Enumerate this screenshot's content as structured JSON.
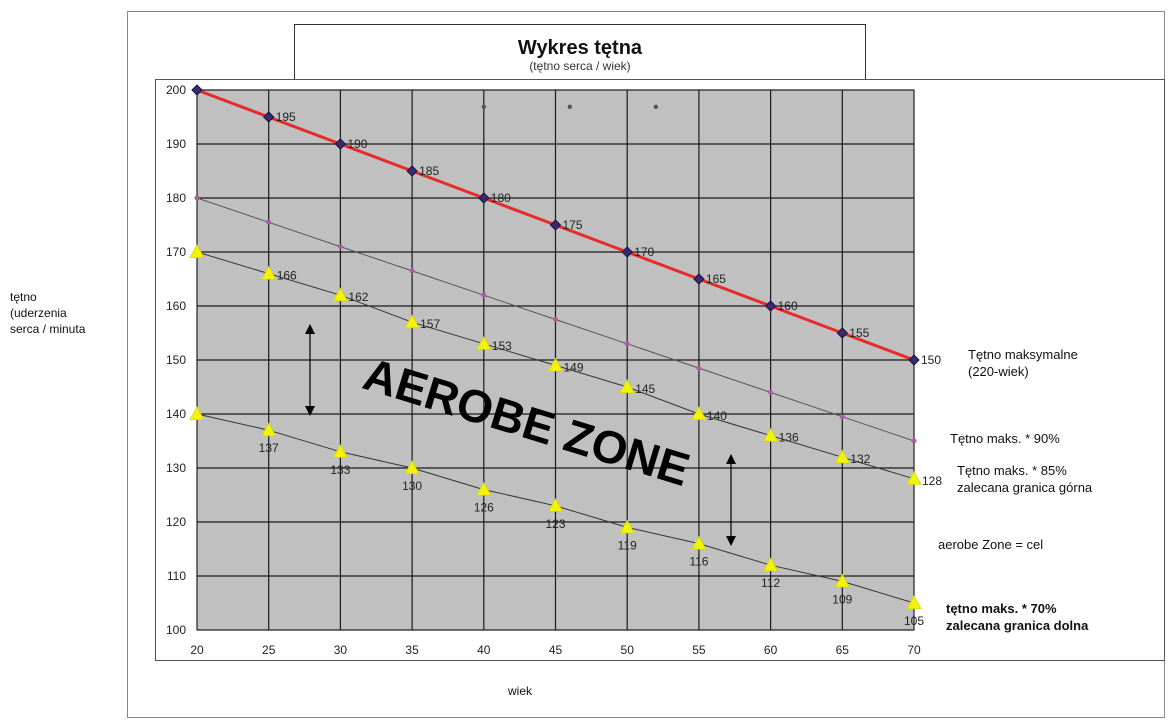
{
  "title": "Wykres tętna",
  "subtitle": "(tętno serca / wiek)",
  "ylabel": [
    "tętno",
    "(uderzenia",
    "serca / minuta"
  ],
  "xlabel": "wiek",
  "zone_label": "AEROBE ZONE",
  "legend": {
    "max": [
      "Tętno maksymalne",
      "(220-wiek)"
    ],
    "p90": [
      "Tętno maks. * 90%"
    ],
    "p85": [
      "Tętno maks. * 85%",
      "zalecana granica górna"
    ],
    "zone": [
      "aerobe Zone = cel"
    ],
    "p70": [
      "tętno maks. * 70%",
      "zalecana granica dolna"
    ]
  },
  "colors": {
    "plot_bg": "#c0c0c0",
    "grid": "#1a1a1a",
    "max_line": "#e82a2a",
    "max_marker": "#3b2a6e",
    "p90_line": "#555555",
    "p90_marker": "#b05aa0",
    "yellow_marker": "#f2f20a"
  },
  "chart_data": {
    "type": "line",
    "title": "Wykres tętna",
    "subtitle": "(tętno serca / wiek)",
    "xlabel": "wiek",
    "ylabel": "tętno (uderzenia serca / minuta",
    "x": [
      20,
      25,
      30,
      35,
      40,
      45,
      50,
      55,
      60,
      65,
      70
    ],
    "xlim": [
      20,
      70
    ],
    "ylim": [
      100,
      200
    ],
    "yticks": [
      100,
      110,
      120,
      130,
      140,
      150,
      160,
      170,
      180,
      190,
      200
    ],
    "grid": true,
    "series": [
      {
        "key": "max",
        "values": [
          200,
          195,
          190,
          185,
          180,
          175,
          170,
          165,
          160,
          155,
          150
        ],
        "labels": [
          "",
          "195",
          "190",
          "185",
          "180",
          "175",
          "170",
          "165",
          "160",
          "155",
          "150"
        ]
      },
      {
        "key": "p90",
        "values": [
          180,
          175.5,
          171,
          166.5,
          162,
          157.5,
          153,
          148.5,
          144,
          139.5,
          135
        ],
        "labels": [
          "",
          "",
          "",
          "",
          "",
          "",
          "",
          "",
          "",
          "",
          ""
        ]
      },
      {
        "key": "p85",
        "values": [
          170,
          166,
          162,
          157,
          153,
          149,
          145,
          140,
          136,
          132,
          128
        ],
        "labels": [
          "",
          "166",
          "162",
          "157",
          "153",
          "149",
          "145",
          "140",
          "136",
          "132",
          "128"
        ]
      },
      {
        "key": "p70",
        "values": [
          140,
          137,
          133,
          130,
          126,
          123,
          119,
          116,
          112,
          109,
          105
        ],
        "labels": [
          "",
          "137",
          "133",
          "130",
          "126",
          "123",
          "119",
          "116",
          "112",
          "109",
          "105"
        ]
      }
    ],
    "stray_points": [
      {
        "x": 40,
        "y": 198
      },
      {
        "x": 46,
        "y": 198
      },
      {
        "x": 52,
        "y": 198
      }
    ]
  }
}
